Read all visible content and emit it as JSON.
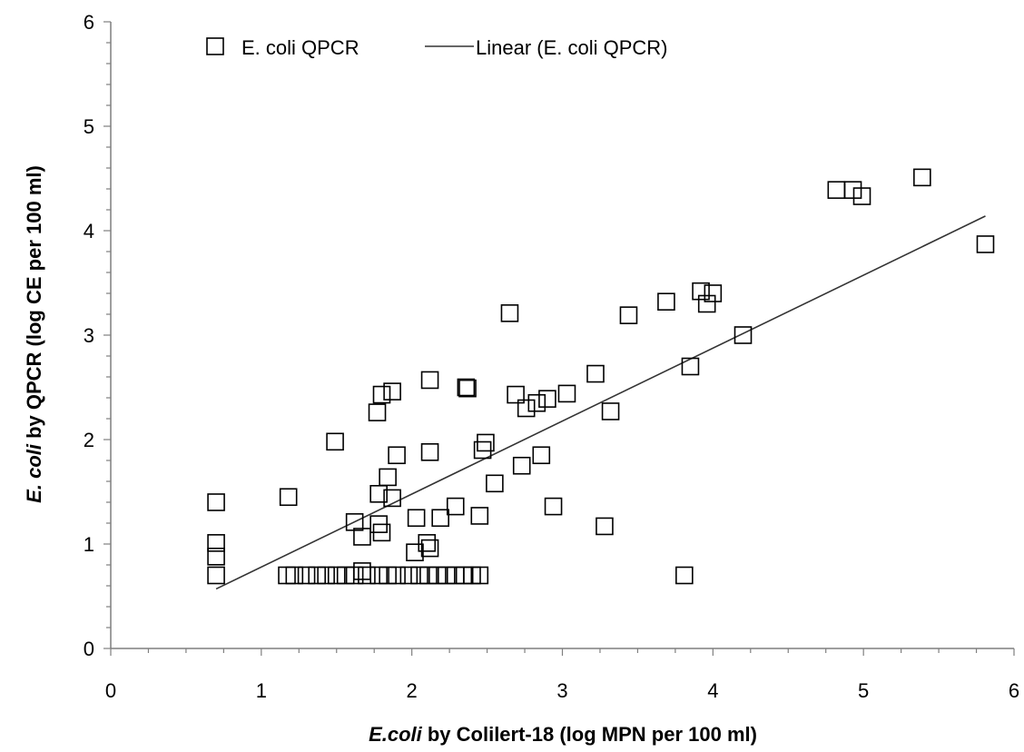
{
  "chart_data": {
    "type": "scatter",
    "title": "",
    "xlabel": {
      "italic": "E.coli",
      "rest": " by Colilert-18 (log MPN per 100 ml)"
    },
    "ylabel": {
      "italic": "E. coli",
      "rest": " by QPCR (log CE per 100 ml)"
    },
    "xlim": [
      0,
      6
    ],
    "ylim": [
      0,
      6
    ],
    "xticks": [
      "0",
      "1",
      "2",
      "3",
      "4",
      "5",
      "6"
    ],
    "yticks": [
      "0",
      "1",
      "2",
      "3",
      "4",
      "5",
      "6"
    ],
    "grid": false,
    "legend_position": "top",
    "legend": [
      "E. coli QPCR",
      "Linear (E. coli QPCR)"
    ],
    "series": [
      {
        "name": "E. coli QPCR",
        "marker": "open-square",
        "points": [
          [
            0.7,
            1.4
          ],
          [
            0.7,
            1.01
          ],
          [
            0.7,
            0.88
          ],
          [
            0.7,
            0.7
          ],
          [
            1.18,
            1.45
          ],
          [
            1.49,
            1.98
          ],
          [
            1.62,
            1.21
          ],
          [
            1.67,
            1.07
          ],
          [
            1.67,
            0.74
          ],
          [
            1.77,
            2.26
          ],
          [
            1.8,
            2.43
          ],
          [
            1.78,
            1.48
          ],
          [
            1.78,
            1.19
          ],
          [
            1.8,
            1.11
          ],
          [
            1.84,
            1.64
          ],
          [
            1.87,
            2.46
          ],
          [
            1.87,
            1.44
          ],
          [
            1.9,
            1.85
          ],
          [
            2.02,
            0.92
          ],
          [
            2.03,
            1.25
          ],
          [
            2.1,
            1.01
          ],
          [
            2.12,
            0.96
          ],
          [
            2.12,
            2.57
          ],
          [
            2.12,
            1.88
          ],
          [
            2.19,
            1.25
          ],
          [
            2.29,
            1.36
          ],
          [
            2.36,
            2.5
          ],
          [
            2.37,
            2.49
          ],
          [
            2.45,
            1.27
          ],
          [
            2.47,
            1.9
          ],
          [
            2.49,
            1.97
          ],
          [
            2.55,
            1.58
          ],
          [
            2.65,
            3.21
          ],
          [
            2.69,
            2.43
          ],
          [
            2.73,
            1.75
          ],
          [
            2.76,
            2.3
          ],
          [
            2.83,
            2.35
          ],
          [
            2.86,
            1.85
          ],
          [
            2.9,
            2.39
          ],
          [
            2.94,
            1.36
          ],
          [
            3.03,
            2.44
          ],
          [
            3.22,
            2.63
          ],
          [
            3.28,
            1.17
          ],
          [
            3.32,
            2.27
          ],
          [
            3.44,
            3.19
          ],
          [
            3.69,
            3.32
          ],
          [
            3.81,
            0.7
          ],
          [
            3.85,
            2.7
          ],
          [
            3.92,
            3.42
          ],
          [
            3.96,
            3.3
          ],
          [
            4.0,
            3.4
          ],
          [
            4.2,
            3.0
          ],
          [
            4.82,
            4.39
          ],
          [
            4.93,
            4.39
          ],
          [
            4.99,
            4.33
          ],
          [
            5.39,
            4.51
          ],
          [
            5.81,
            3.87
          ],
          [
            1.17,
            0.7
          ],
          [
            1.22,
            0.7
          ],
          [
            1.3,
            0.7
          ],
          [
            1.37,
            0.7
          ],
          [
            1.43,
            0.7
          ],
          [
            1.5,
            0.7
          ],
          [
            1.56,
            0.7
          ],
          [
            1.62,
            0.7
          ],
          [
            1.7,
            0.7
          ],
          [
            1.78,
            0.7
          ],
          [
            1.84,
            0.7
          ],
          [
            1.9,
            0.7
          ],
          [
            1.98,
            0.7
          ],
          [
            2.05,
            0.7
          ],
          [
            2.11,
            0.7
          ],
          [
            2.17,
            0.7
          ],
          [
            2.23,
            0.7
          ],
          [
            2.29,
            0.7
          ],
          [
            2.35,
            0.7
          ],
          [
            2.4,
            0.7
          ],
          [
            2.45,
            0.7
          ]
        ]
      }
    ],
    "trendline": {
      "name": "Linear (E. coli QPCR)",
      "x": [
        0.7,
        5.81
      ],
      "y": [
        0.57,
        4.14
      ]
    }
  }
}
